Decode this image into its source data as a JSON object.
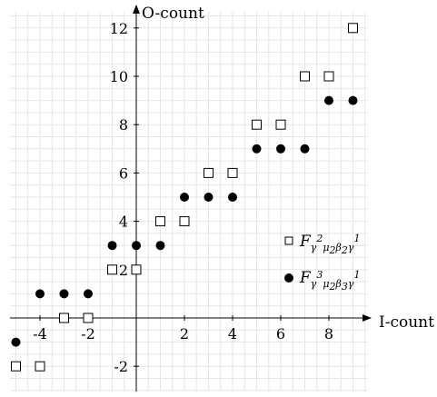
{
  "chart_data": {
    "type": "scatter",
    "xlabel": "I-count",
    "ylabel": "O-count",
    "xlim": [
      -5,
      9
    ],
    "ylim": [
      -3,
      12
    ],
    "grid": true,
    "x_ticks": [
      -4,
      -2,
      2,
      4,
      6,
      8
    ],
    "x_tick_labels": [
      "-4",
      "-2",
      "2",
      "4",
      "6",
      "8"
    ],
    "y_ticks": [
      -2,
      2,
      4,
      6,
      8,
      10,
      12
    ],
    "y_tick_labels": [
      "-2",
      "2",
      "4",
      "6",
      "8",
      "10",
      "12"
    ],
    "legend_position": "right",
    "series": [
      {
        "name": "F_{γ²μ₂β₂γ¹}",
        "legend": {
          "script": "F",
          "s1": "γ",
          "p1": "2",
          "s2": "μ",
          "p2": "2",
          "s3": "β",
          "p3": "2",
          "s4": "γ",
          "p4": "1"
        },
        "marker": "open-square",
        "points": [
          [
            -5,
            -2
          ],
          [
            -4,
            -2
          ],
          [
            -3,
            0
          ],
          [
            -2,
            0
          ],
          [
            -1,
            2
          ],
          [
            0,
            2
          ],
          [
            1,
            4
          ],
          [
            2,
            4
          ],
          [
            3,
            6
          ],
          [
            4,
            6
          ],
          [
            5,
            8
          ],
          [
            6,
            8
          ],
          [
            7,
            10
          ],
          [
            8,
            10
          ],
          [
            9,
            12
          ]
        ]
      },
      {
        "name": "F_{γ³μ₂β₃γ¹}",
        "legend": {
          "script": "F",
          "s1": "γ",
          "p1": "3",
          "s2": "μ",
          "p2": "2",
          "s3": "β",
          "p3": "3",
          "s4": "γ",
          "p4": "1"
        },
        "marker": "filled-circle",
        "points": [
          [
            -5,
            -1
          ],
          [
            -4,
            1
          ],
          [
            -3,
            1
          ],
          [
            -2,
            1
          ],
          [
            -1,
            3
          ],
          [
            0,
            3
          ],
          [
            1,
            3
          ],
          [
            2,
            5
          ],
          [
            3,
            5
          ],
          [
            4,
            5
          ],
          [
            5,
            7
          ],
          [
            6,
            7
          ],
          [
            7,
            7
          ],
          [
            8,
            9
          ],
          [
            9,
            9
          ]
        ]
      }
    ]
  }
}
